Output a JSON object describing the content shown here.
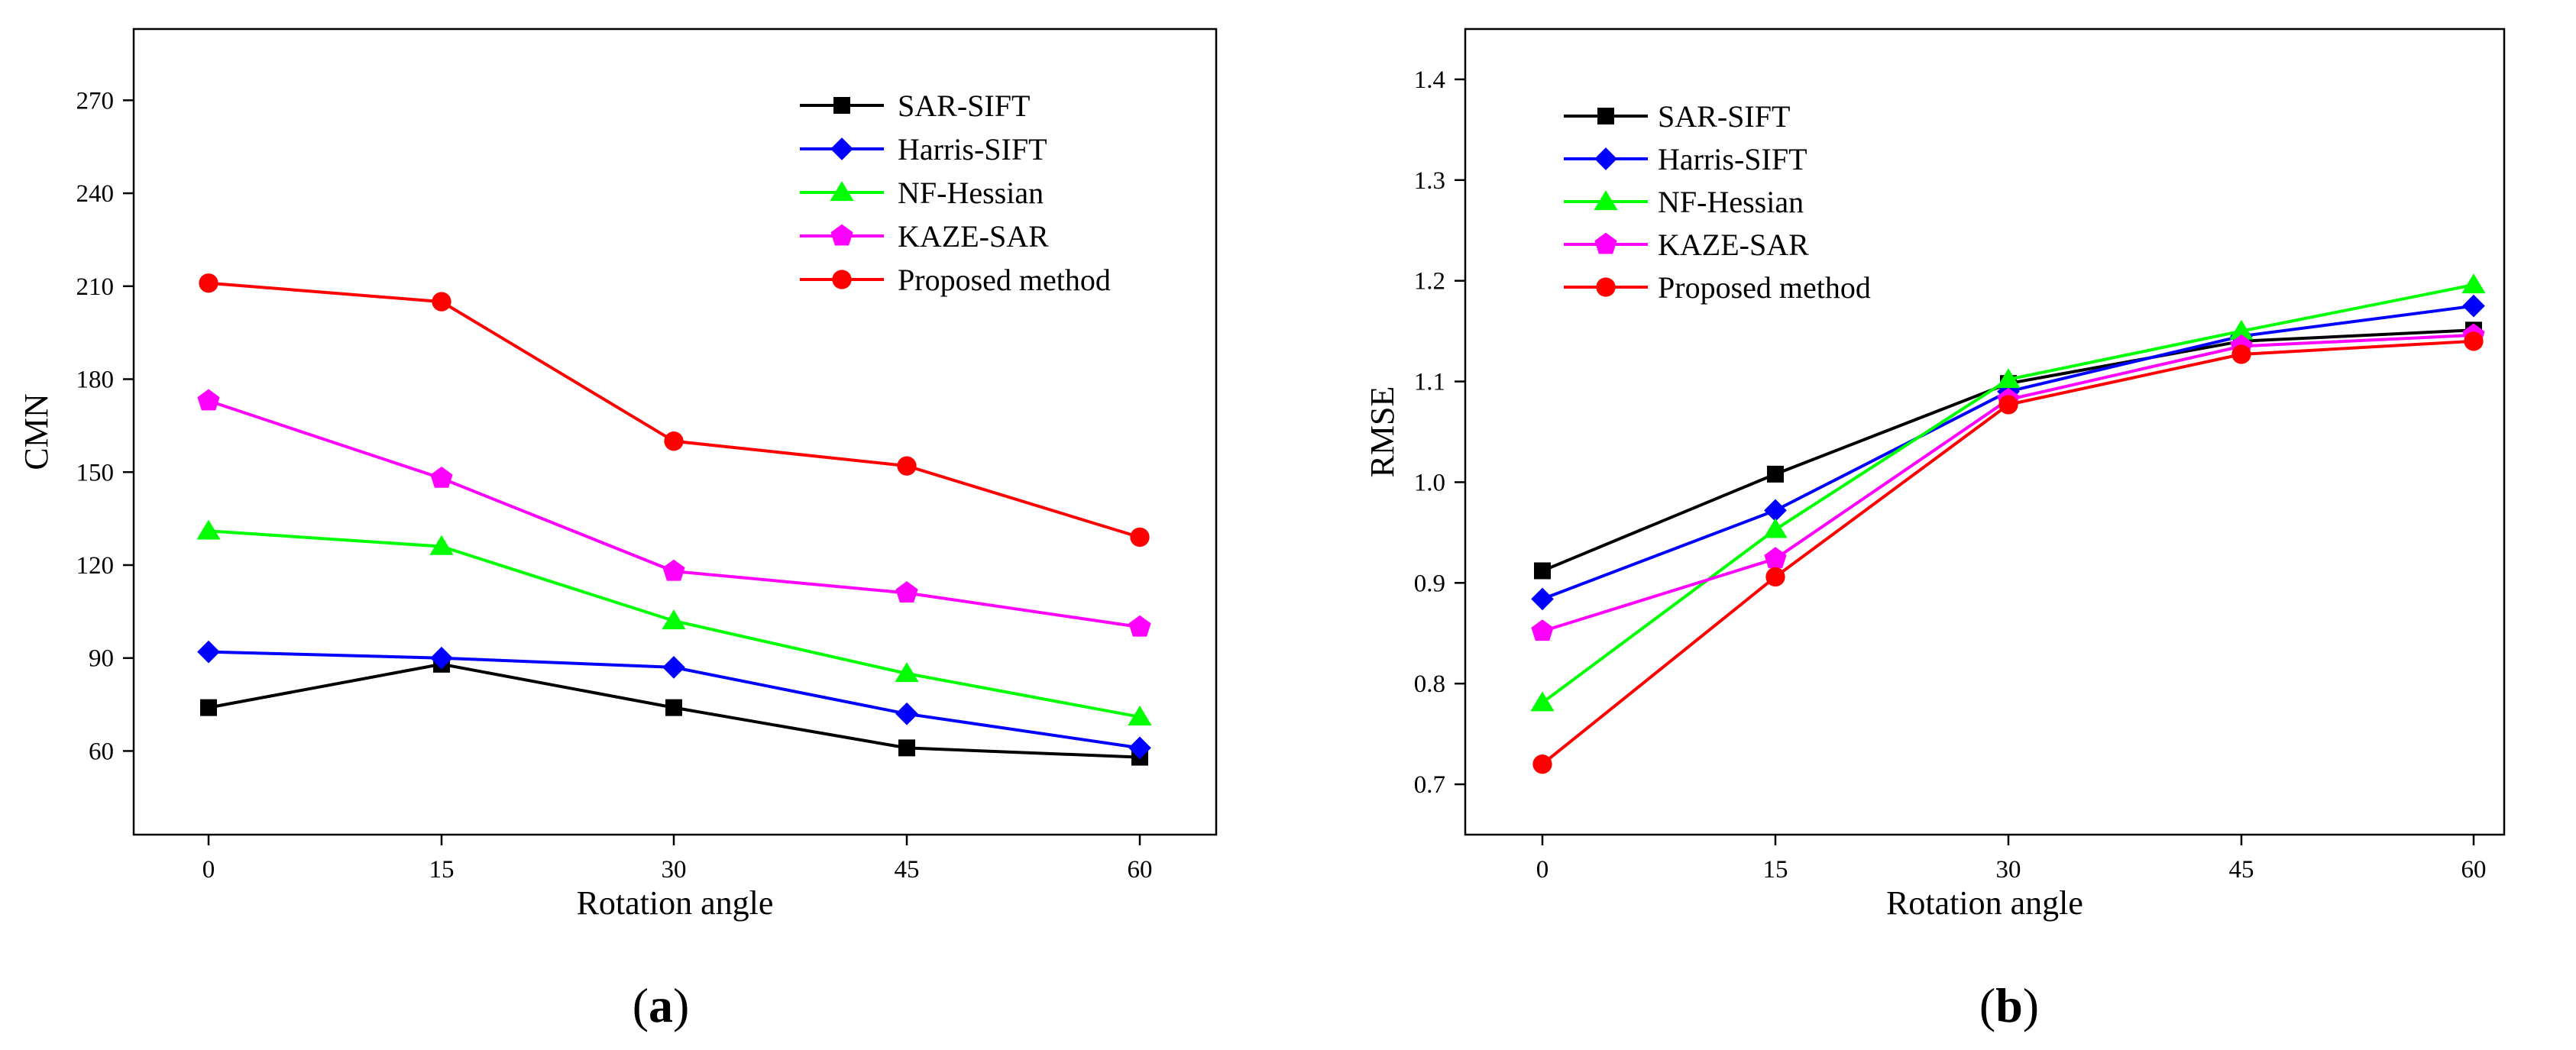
{
  "chart_data": [
    {
      "type": "line",
      "panel_label": "a",
      "xlabel": "Rotation angle",
      "ylabel": "CMN",
      "x": [
        0,
        15,
        30,
        45,
        60
      ],
      "xticks": [
        "0",
        "15",
        "30",
        "45",
        "60"
      ],
      "ylim": [
        33,
        293
      ],
      "yticks": [
        "60",
        "90",
        "120",
        "150",
        "180",
        "210",
        "240",
        "270"
      ],
      "grid": false,
      "legend_position": "top-right",
      "series": [
        {
          "name": "SAR-SIFT",
          "color": "#000000",
          "marker": "square",
          "values": [
            74,
            88,
            74,
            61,
            58
          ]
        },
        {
          "name": "Harris-SIFT",
          "color": "#0000ff",
          "marker": "diamond",
          "values": [
            92,
            90,
            87,
            72,
            61
          ]
        },
        {
          "name": "NF-Hessian",
          "color": "#00ff00",
          "marker": "triangle",
          "values": [
            131,
            126,
            102,
            85,
            71
          ]
        },
        {
          "name": "KAZE-SAR",
          "color": "#ff00ff",
          "marker": "pentagon",
          "values": [
            173,
            148,
            118,
            111,
            100
          ]
        },
        {
          "name": "Proposed method",
          "color": "#ff0000",
          "marker": "circle",
          "values": [
            211,
            205,
            160,
            152,
            129
          ]
        }
      ]
    },
    {
      "type": "line",
      "panel_label": "b",
      "xlabel": "Rotation angle",
      "ylabel": "RMSE",
      "x": [
        0,
        15,
        30,
        45,
        60
      ],
      "xticks": [
        "0",
        "15",
        "30",
        "45",
        "60"
      ],
      "ylim": [
        0.65,
        1.45
      ],
      "yticks": [
        "0.7",
        "0.8",
        "0.9",
        "1.0",
        "1.1",
        "1.2",
        "1.3",
        "1.4"
      ],
      "grid": false,
      "legend_position": "top-left",
      "series": [
        {
          "name": "SAR-SIFT",
          "color": "#000000",
          "marker": "square",
          "values": [
            0.912,
            1.008,
            1.098,
            1.14,
            1.151
          ]
        },
        {
          "name": "Harris-SIFT",
          "color": "#0000ff",
          "marker": "diamond",
          "values": [
            0.884,
            0.972,
            1.09,
            1.145,
            1.175
          ]
        },
        {
          "name": "NF-Hessian",
          "color": "#00ff00",
          "marker": "triangle",
          "values": [
            0.781,
            0.953,
            1.102,
            1.15,
            1.196
          ]
        },
        {
          "name": "KAZE-SAR",
          "color": "#ff00ff",
          "marker": "pentagon",
          "values": [
            0.852,
            0.924,
            1.082,
            1.135,
            1.146
          ]
        },
        {
          "name": "Proposed method",
          "color": "#ff0000",
          "marker": "circle",
          "values": [
            0.72,
            0.906,
            1.077,
            1.127,
            1.14
          ]
        }
      ]
    }
  ]
}
